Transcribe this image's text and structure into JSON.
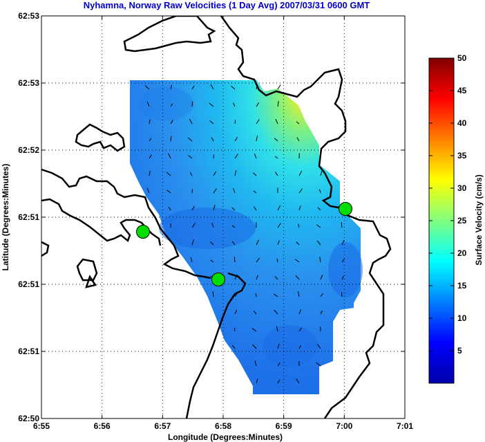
{
  "chart_data": {
    "type": "heatmap",
    "title": "Nyhamna, Norway Raw Velocities (1 Day Avg) 2007/03/31 0600 GMT",
    "xlabel": "Longitude (Degrees:Minutes)",
    "ylabel": "Latitude (Degrees:Minutes)",
    "x_tick_labels": [
      "6:55",
      "6:56",
      "6:57",
      "6:58",
      "6:59",
      "7:00",
      "7:01"
    ],
    "y_tick_labels": [
      "62:50",
      "62:51",
      "62:51",
      "62:51",
      "62:52",
      "62:53",
      "62:53"
    ],
    "grid": true,
    "colorbar": {
      "label": "Surface Velocity (cm/s)",
      "range": [
        0,
        50
      ],
      "tick_labels": [
        "5",
        "10",
        "15",
        "20",
        "25",
        "30",
        "35",
        "40",
        "45",
        "50"
      ],
      "colormap": "jet"
    },
    "sites": [
      {
        "lon": 6.945,
        "lat": 0.36,
        "color": "#00dd00"
      },
      {
        "lon": 6.982,
        "lat": 0.25,
        "color": "#00dd00"
      },
      {
        "lon": 7.0,
        "lat": 0.52,
        "color": "#00dd00"
      }
    ],
    "colors": {
      "title": "#0000cc",
      "coastline": "#000000",
      "grid": "#000000",
      "site_marker": "#00dd00"
    }
  }
}
